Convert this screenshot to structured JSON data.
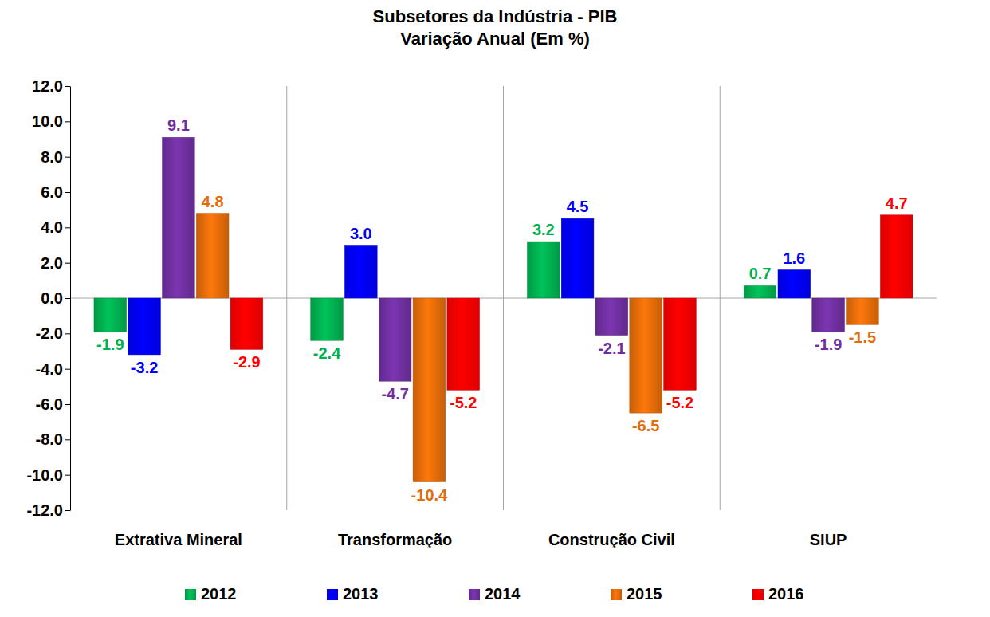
{
  "chart_data": {
    "type": "bar",
    "title": "Subsetores da Indústria - PIB",
    "subtitle": "Variação Anual (Em %)",
    "categories": [
      "Extrativa Mineral",
      "Transformação",
      "Construção Civil",
      "SIUP"
    ],
    "series": [
      {
        "name": "2012",
        "color": "#00b050",
        "values": [
          -1.9,
          -2.4,
          3.2,
          0.7
        ],
        "value_labels": [
          "-1.9",
          "-2.4",
          "3.2",
          "0.7"
        ]
      },
      {
        "name": "2013",
        "color": "#0000ff",
        "values": [
          -3.2,
          3.0,
          4.5,
          1.6
        ],
        "value_labels": [
          "-3.2",
          "3.0",
          "4.5",
          "1.6"
        ]
      },
      {
        "name": "2014",
        "color": "#7030a0",
        "values": [
          9.1,
          -4.7,
          -2.1,
          -1.9
        ],
        "value_labels": [
          "9.1",
          "-4.7",
          "-2.1",
          "-1.9"
        ]
      },
      {
        "name": "2015",
        "color": "#e46c0a",
        "values": [
          4.8,
          -10.4,
          -6.5,
          -1.5
        ],
        "value_labels": [
          "4.8",
          "-10.4",
          "-6.5",
          "-1.5"
        ]
      },
      {
        "name": "2016",
        "color": "#ff0000",
        "values": [
          -2.9,
          -5.2,
          -5.2,
          4.7
        ],
        "value_labels": [
          "-2.9",
          "-5.2",
          "-5.2",
          "4.7"
        ]
      }
    ],
    "ylim": [
      -12,
      12
    ],
    "yticks": [
      {
        "value": -12,
        "label": "-12.0"
      },
      {
        "value": -10,
        "label": "-10.0"
      },
      {
        "value": -8,
        "label": "-8.0"
      },
      {
        "value": -6,
        "label": "-6.0"
      },
      {
        "value": -4,
        "label": "-4.0"
      },
      {
        "value": -2,
        "label": "-2.0"
      },
      {
        "value": 0,
        "label": "0.0"
      },
      {
        "value": 2,
        "label": "2.0"
      },
      {
        "value": 4,
        "label": "4.0"
      },
      {
        "value": 6,
        "label": "6.0"
      },
      {
        "value": 8,
        "label": "8.0"
      },
      {
        "value": 10,
        "label": "10.0"
      },
      {
        "value": 12,
        "label": "12.0"
      }
    ],
    "grid": false,
    "legend": "bottom",
    "data_labels": true
  }
}
